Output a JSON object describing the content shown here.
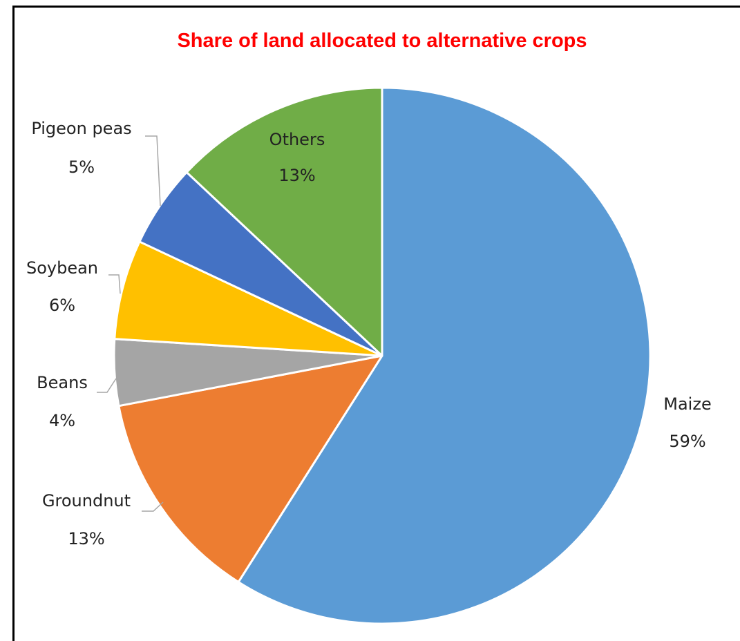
{
  "chart_data": {
    "type": "pie",
    "title": "Share of land allocated to alternative crops",
    "title_color": "#ff0000",
    "categories": [
      "Maize",
      "Groundnut",
      "Beans",
      "Soybean",
      "Pigeon peas",
      "Others"
    ],
    "values": [
      59,
      13,
      4,
      6,
      5,
      13
    ],
    "value_labels": [
      "59%",
      "13%",
      "4%",
      "6%",
      "5%",
      "13%"
    ],
    "colors": [
      "#5b9bd5",
      "#ed7d31",
      "#a5a5a5",
      "#ffc000",
      "#4472c4",
      "#70ad47"
    ],
    "start_angle": "12 o'clock",
    "direction": "clockwise",
    "slice_border_color": "#ffffff",
    "legend": "none"
  }
}
